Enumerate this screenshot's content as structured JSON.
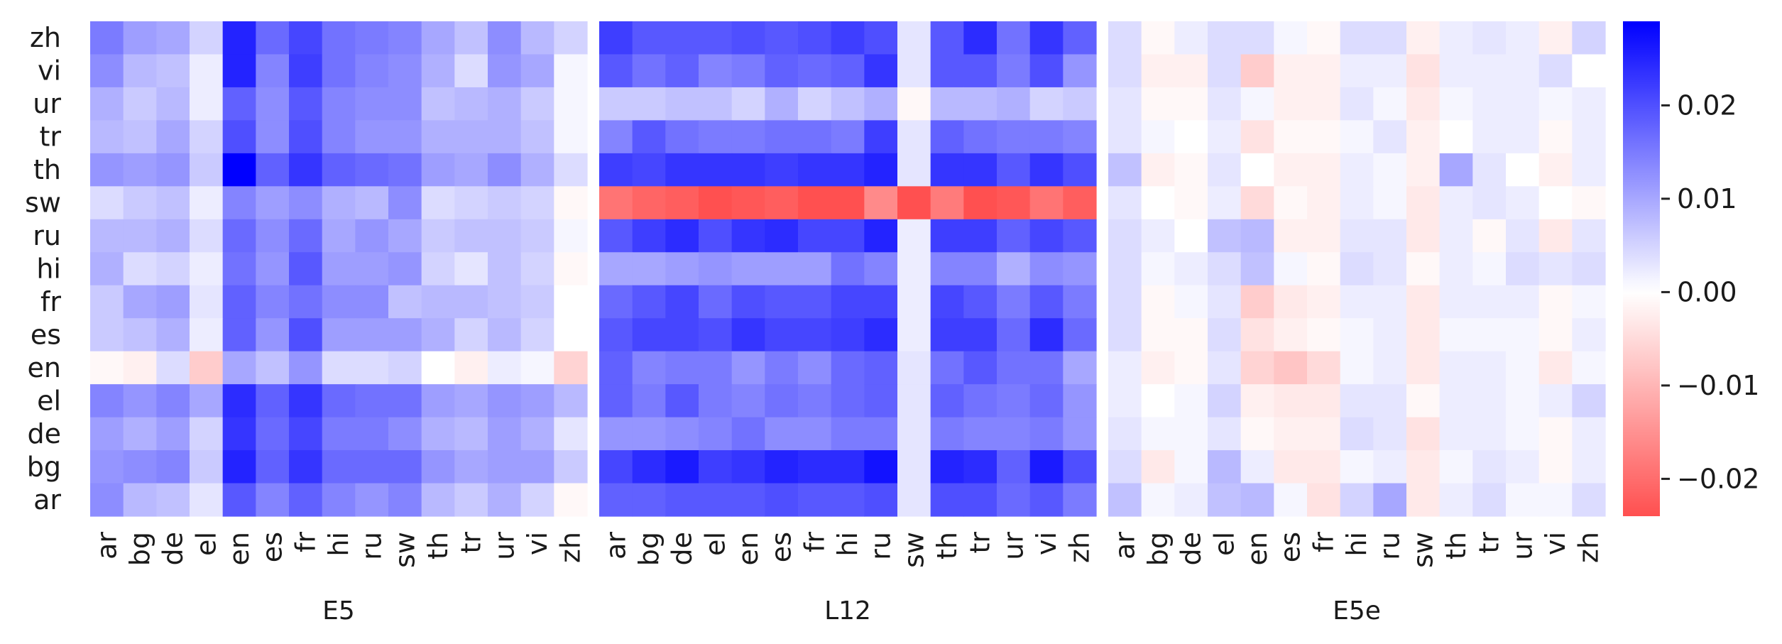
{
  "chart_data": {
    "type": "heatmap",
    "x_categories": [
      "ar",
      "bg",
      "de",
      "el",
      "en",
      "es",
      "fr",
      "hi",
      "ru",
      "sw",
      "th",
      "tr",
      "ur",
      "vi",
      "zh"
    ],
    "y_categories": [
      "zh",
      "vi",
      "ur",
      "tr",
      "th",
      "sw",
      "ru",
      "hi",
      "fr",
      "es",
      "en",
      "el",
      "de",
      "bg",
      "ar"
    ],
    "colorbar": {
      "vmin": -0.024,
      "vmax": 0.029,
      "ticks": [
        0.02,
        0.01,
        0.0,
        -0.01,
        -0.02
      ],
      "tick_labels": [
        "0.02",
        "0.01",
        "0.00",
        "−0.01",
        "−0.02"
      ],
      "colormap": [
        "#ff2b2b",
        "#ffffff",
        "#0000ff"
      ]
    },
    "panels": [
      {
        "xlabel": "E5",
        "values": [
          [
            0.015,
            0.011,
            0.01,
            0.005,
            0.025,
            0.017,
            0.021,
            0.016,
            0.015,
            0.014,
            0.01,
            0.007,
            0.013,
            0.008,
            0.005
          ],
          [
            0.013,
            0.008,
            0.007,
            0.002,
            0.025,
            0.014,
            0.022,
            0.016,
            0.014,
            0.013,
            0.009,
            0.004,
            0.012,
            0.01,
            0.001
          ],
          [
            0.009,
            0.006,
            0.008,
            0.002,
            0.018,
            0.013,
            0.019,
            0.014,
            0.013,
            0.013,
            0.007,
            0.008,
            0.009,
            0.006,
            0.001
          ],
          [
            0.008,
            0.007,
            0.01,
            0.005,
            0.02,
            0.013,
            0.02,
            0.014,
            0.012,
            0.012,
            0.009,
            0.009,
            0.009,
            0.007,
            0.001
          ],
          [
            0.012,
            0.011,
            0.012,
            0.006,
            0.029,
            0.018,
            0.023,
            0.018,
            0.017,
            0.016,
            0.011,
            0.01,
            0.013,
            0.009,
            0.004
          ],
          [
            0.004,
            0.006,
            0.007,
            0.002,
            0.014,
            0.011,
            0.013,
            0.009,
            0.008,
            0.013,
            0.004,
            0.005,
            0.006,
            0.005,
            -0.001
          ],
          [
            0.008,
            0.008,
            0.009,
            0.004,
            0.017,
            0.013,
            0.017,
            0.01,
            0.012,
            0.01,
            0.006,
            0.007,
            0.007,
            0.006,
            0.001
          ],
          [
            0.009,
            0.004,
            0.005,
            0.002,
            0.016,
            0.012,
            0.019,
            0.011,
            0.011,
            0.012,
            0.005,
            0.003,
            0.007,
            0.005,
            -0.001
          ],
          [
            0.006,
            0.01,
            0.011,
            0.003,
            0.018,
            0.014,
            0.016,
            0.013,
            0.013,
            0.007,
            0.008,
            0.008,
            0.007,
            0.006,
            0.0
          ],
          [
            0.006,
            0.007,
            0.009,
            0.002,
            0.018,
            0.012,
            0.02,
            0.011,
            0.011,
            0.011,
            0.009,
            0.005,
            0.008,
            0.005,
            0.0
          ],
          [
            -0.001,
            -0.002,
            0.004,
            -0.007,
            0.01,
            0.007,
            0.012,
            0.004,
            0.004,
            0.005,
            0.0,
            -0.002,
            0.002,
            0.001,
            -0.006
          ],
          [
            0.014,
            0.012,
            0.014,
            0.01,
            0.024,
            0.018,
            0.023,
            0.017,
            0.016,
            0.016,
            0.011,
            0.01,
            0.012,
            0.011,
            0.008
          ],
          [
            0.011,
            0.009,
            0.011,
            0.005,
            0.023,
            0.017,
            0.021,
            0.015,
            0.015,
            0.013,
            0.009,
            0.008,
            0.011,
            0.009,
            0.003
          ],
          [
            0.012,
            0.013,
            0.014,
            0.006,
            0.025,
            0.018,
            0.023,
            0.017,
            0.017,
            0.017,
            0.012,
            0.01,
            0.011,
            0.011,
            0.006
          ],
          [
            0.013,
            0.008,
            0.007,
            0.003,
            0.019,
            0.014,
            0.018,
            0.014,
            0.012,
            0.014,
            0.008,
            0.006,
            0.009,
            0.005,
            -0.001
          ]
        ]
      },
      {
        "xlabel": "L12",
        "values": [
          [
            0.022,
            0.019,
            0.019,
            0.019,
            0.02,
            0.019,
            0.02,
            0.022,
            0.02,
            0.003,
            0.019,
            0.024,
            0.016,
            0.023,
            0.018
          ],
          [
            0.019,
            0.016,
            0.018,
            0.014,
            0.015,
            0.018,
            0.017,
            0.018,
            0.023,
            0.003,
            0.019,
            0.019,
            0.015,
            0.02,
            0.012
          ],
          [
            0.006,
            0.006,
            0.007,
            0.007,
            0.005,
            0.009,
            0.005,
            0.007,
            0.009,
            -0.001,
            0.008,
            0.008,
            0.009,
            0.005,
            0.006
          ],
          [
            0.014,
            0.019,
            0.016,
            0.015,
            0.015,
            0.016,
            0.016,
            0.015,
            0.022,
            0.003,
            0.018,
            0.016,
            0.015,
            0.015,
            0.014
          ],
          [
            0.022,
            0.021,
            0.023,
            0.023,
            0.023,
            0.022,
            0.023,
            0.023,
            0.025,
            0.003,
            0.023,
            0.023,
            0.019,
            0.023,
            0.02
          ],
          [
            -0.019,
            -0.021,
            -0.022,
            -0.024,
            -0.023,
            -0.022,
            -0.024,
            -0.024,
            -0.016,
            -0.024,
            -0.018,
            -0.024,
            -0.023,
            -0.019,
            -0.022
          ],
          [
            0.019,
            0.022,
            0.024,
            0.02,
            0.023,
            0.024,
            0.021,
            0.021,
            0.025,
            0.002,
            0.022,
            0.022,
            0.018,
            0.021,
            0.019
          ],
          [
            0.01,
            0.01,
            0.011,
            0.012,
            0.011,
            0.011,
            0.011,
            0.016,
            0.014,
            0.002,
            0.014,
            0.014,
            0.009,
            0.013,
            0.012
          ],
          [
            0.017,
            0.019,
            0.021,
            0.017,
            0.02,
            0.019,
            0.019,
            0.021,
            0.021,
            0.002,
            0.021,
            0.019,
            0.015,
            0.019,
            0.015
          ],
          [
            0.019,
            0.021,
            0.021,
            0.02,
            0.023,
            0.021,
            0.021,
            0.022,
            0.024,
            0.002,
            0.022,
            0.022,
            0.017,
            0.024,
            0.017
          ],
          [
            0.018,
            0.014,
            0.015,
            0.015,
            0.012,
            0.015,
            0.013,
            0.017,
            0.018,
            0.003,
            0.016,
            0.019,
            0.016,
            0.016,
            0.01
          ],
          [
            0.018,
            0.015,
            0.019,
            0.015,
            0.014,
            0.016,
            0.015,
            0.017,
            0.018,
            0.003,
            0.018,
            0.016,
            0.015,
            0.017,
            0.012
          ],
          [
            0.012,
            0.012,
            0.013,
            0.014,
            0.016,
            0.013,
            0.013,
            0.015,
            0.015,
            0.003,
            0.015,
            0.014,
            0.014,
            0.015,
            0.012
          ],
          [
            0.021,
            0.024,
            0.026,
            0.022,
            0.023,
            0.025,
            0.024,
            0.024,
            0.027,
            0.003,
            0.025,
            0.024,
            0.018,
            0.026,
            0.02
          ],
          [
            0.018,
            0.018,
            0.019,
            0.019,
            0.019,
            0.02,
            0.019,
            0.019,
            0.02,
            0.003,
            0.02,
            0.02,
            0.017,
            0.019,
            0.015
          ]
        ]
      },
      {
        "xlabel": "E5e",
        "values": [
          [
            0.004,
            -0.001,
            0.002,
            0.004,
            0.004,
            0.001,
            -0.001,
            0.004,
            0.004,
            -0.002,
            0.002,
            0.003,
            0.002,
            -0.002,
            0.005
          ],
          [
            0.004,
            -0.002,
            -0.002,
            0.004,
            -0.007,
            -0.002,
            -0.002,
            0.002,
            0.002,
            -0.004,
            0.002,
            0.002,
            0.002,
            0.004,
            0.0
          ],
          [
            0.003,
            -0.001,
            -0.001,
            0.003,
            0.001,
            -0.002,
            -0.002,
            0.003,
            0.001,
            -0.003,
            0.001,
            0.002,
            0.002,
            0.001,
            0.002
          ],
          [
            0.003,
            0.001,
            0.0,
            0.002,
            -0.004,
            -0.001,
            -0.001,
            0.001,
            0.003,
            -0.002,
            0.0,
            0.002,
            0.002,
            -0.001,
            0.002
          ],
          [
            0.007,
            -0.002,
            -0.001,
            0.003,
            0.0,
            -0.002,
            -0.002,
            0.002,
            0.001,
            -0.002,
            0.01,
            0.003,
            0.0,
            -0.002,
            0.002
          ],
          [
            0.003,
            0.0,
            -0.001,
            0.002,
            -0.005,
            -0.001,
            -0.002,
            0.002,
            0.001,
            -0.003,
            0.002,
            0.003,
            0.002,
            0.0,
            -0.001
          ],
          [
            0.004,
            0.002,
            0.0,
            0.007,
            0.008,
            -0.002,
            -0.002,
            0.003,
            0.003,
            -0.003,
            0.002,
            -0.001,
            0.003,
            -0.003,
            0.003
          ],
          [
            0.004,
            0.001,
            0.002,
            0.004,
            0.007,
            0.001,
            -0.001,
            0.004,
            0.003,
            -0.001,
            0.002,
            0.001,
            0.004,
            0.003,
            0.004
          ],
          [
            0.004,
            -0.001,
            0.001,
            0.003,
            -0.007,
            -0.003,
            -0.002,
            0.002,
            0.002,
            -0.003,
            0.002,
            0.002,
            0.002,
            -0.001,
            0.001
          ],
          [
            0.004,
            -0.001,
            -0.001,
            0.004,
            -0.004,
            -0.002,
            -0.001,
            0.001,
            0.002,
            -0.003,
            0.001,
            0.001,
            0.001,
            -0.001,
            0.002
          ],
          [
            0.002,
            -0.002,
            -0.001,
            0.003,
            -0.006,
            -0.008,
            -0.005,
            0.001,
            0.002,
            -0.003,
            0.002,
            0.002,
            0.001,
            -0.003,
            0.001
          ],
          [
            0.002,
            0.0,
            0.001,
            0.005,
            -0.002,
            -0.003,
            -0.003,
            0.003,
            0.003,
            -0.001,
            0.002,
            0.002,
            0.001,
            0.002,
            0.005
          ],
          [
            0.003,
            0.001,
            0.001,
            0.003,
            -0.001,
            -0.002,
            -0.002,
            0.004,
            0.003,
            -0.004,
            0.002,
            0.002,
            0.001,
            -0.001,
            0.002
          ],
          [
            0.004,
            -0.003,
            0.001,
            0.008,
            0.002,
            -0.003,
            -0.003,
            0.001,
            0.002,
            -0.003,
            0.001,
            0.003,
            0.002,
            -0.001,
            0.002
          ],
          [
            0.007,
            0.001,
            0.002,
            0.007,
            0.008,
            0.001,
            -0.004,
            0.005,
            0.01,
            -0.003,
            0.002,
            0.004,
            0.001,
            0.001,
            0.004
          ]
        ]
      }
    ]
  }
}
